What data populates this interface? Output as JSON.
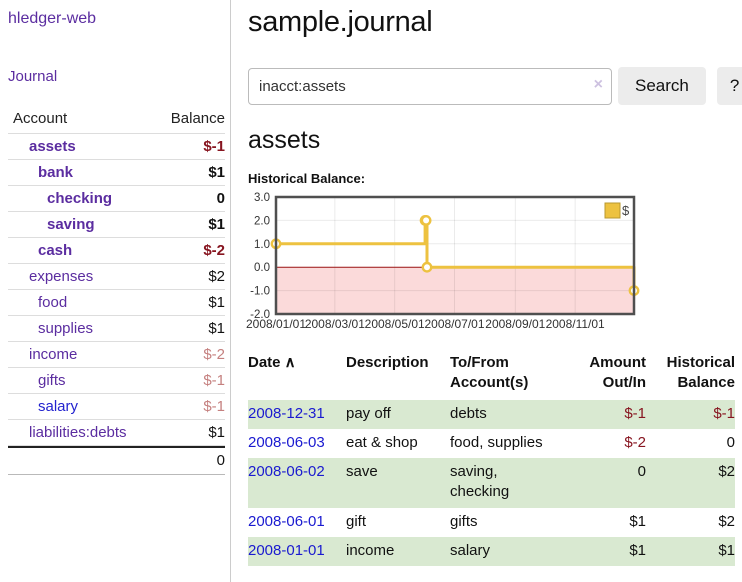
{
  "sidebar": {
    "app_title": "hledger-web",
    "journal_link": "Journal",
    "table": {
      "headers": {
        "account": "Account",
        "balance": "Balance"
      },
      "rows": [
        {
          "name": "assets",
          "balance": "$-1",
          "level": 1,
          "bold": true,
          "balance_style": "negative",
          "link_style": "purple"
        },
        {
          "name": "bank",
          "balance": "$1",
          "level": 2,
          "bold": true,
          "balance_style": "normal",
          "link_style": "purple"
        },
        {
          "name": "checking",
          "balance": "0",
          "level": 3,
          "bold": true,
          "balance_style": "normal",
          "link_style": "purple"
        },
        {
          "name": "saving",
          "balance": "$1",
          "level": 3,
          "bold": true,
          "balance_style": "normal",
          "link_style": "purple"
        },
        {
          "name": "cash",
          "balance": "$-2",
          "level": 2,
          "bold": true,
          "balance_style": "negative",
          "link_style": "purple"
        },
        {
          "name": "expenses",
          "balance": "$2",
          "level": 1,
          "bold": false,
          "balance_style": "normal",
          "link_style": "purple"
        },
        {
          "name": "food",
          "balance": "$1",
          "level": 2,
          "bold": false,
          "balance_style": "normal",
          "link_style": "purple"
        },
        {
          "name": "supplies",
          "balance": "$1",
          "level": 2,
          "bold": false,
          "balance_style": "normal",
          "link_style": "purple"
        },
        {
          "name": "income",
          "balance": "$-2",
          "level": 1,
          "bold": false,
          "balance_style": "negative-dim",
          "link_style": "purple"
        },
        {
          "name": "gifts",
          "balance": "$-1",
          "level": 2,
          "bold": false,
          "balance_style": "negative-dim",
          "link_style": "purple"
        },
        {
          "name": "salary",
          "balance": "$-1",
          "level": 2,
          "bold": false,
          "balance_style": "negative-dim",
          "link_style": "blue"
        },
        {
          "name": "liabilities:debts",
          "balance": "$1",
          "level": 1,
          "bold": false,
          "balance_style": "normal",
          "link_style": "purple"
        }
      ],
      "total": "0"
    }
  },
  "main": {
    "page_title": "sample.journal",
    "search": {
      "value": "inacct:assets",
      "clear_icon": "×",
      "search_button": "Search",
      "help_button": "?"
    },
    "account_heading": "assets",
    "section_label": "Historical Balance:"
  },
  "chart_data": {
    "type": "line",
    "style": "step-after",
    "title": "Historical Balance",
    "legend": [
      {
        "label": "$",
        "color": "#edc240"
      }
    ],
    "legend_position": "top-right",
    "x_range": [
      "2008-01-01",
      "2008-12-31"
    ],
    "x_ticks": [
      "2008/01/01",
      "2008/03/01",
      "2008/05/01",
      "2008/07/01",
      "2008/09/01",
      "2008/11/01"
    ],
    "y_range": [
      -2.0,
      3.0
    ],
    "y_ticks": [
      3.0,
      2.0,
      1.0,
      0.0,
      -1.0,
      -2.0
    ],
    "grid": true,
    "colors": {
      "line": "#edc240",
      "marker_fill": "#ffffff",
      "negative_region": "#fbdada",
      "zero_line": "#9a1313",
      "border": "#4f4f4f",
      "gridline": "rgba(0,0,0,0.08)",
      "tick_text": "#333333",
      "legend_box_border": "#b9982f"
    },
    "series": [
      {
        "name": "$",
        "points": [
          {
            "date": "2008-01-01",
            "value": 1
          },
          {
            "date": "2008-06-01",
            "value": 2
          },
          {
            "date": "2008-06-02",
            "value": 2
          },
          {
            "date": "2008-06-03",
            "value": 0
          },
          {
            "date": "2008-12-31",
            "value": -1
          }
        ]
      }
    ]
  },
  "register": {
    "headers": [
      {
        "label": "Date",
        "sort": "∧",
        "align": "left"
      },
      {
        "label": "Description",
        "align": "left"
      },
      {
        "label": "To/From Account(s)",
        "align": "left"
      },
      {
        "label": "Amount Out/In",
        "align": "right"
      },
      {
        "label": "Historical Balance",
        "align": "right"
      }
    ],
    "rows": [
      {
        "date": "2008-12-31",
        "description": "pay off",
        "accounts": "debts",
        "amount": "$-1",
        "amount_negative": true,
        "balance": "$-1",
        "balance_negative": true
      },
      {
        "date": "2008-06-03",
        "description": "eat & shop",
        "accounts": "food, supplies",
        "amount": "$-2",
        "amount_negative": true,
        "balance": "0",
        "balance_negative": false
      },
      {
        "date": "2008-06-02",
        "description": "save",
        "accounts": "saving, checking",
        "amount": "0",
        "amount_negative": false,
        "balance": "$2",
        "balance_negative": false
      },
      {
        "date": "2008-06-01",
        "description": "gift",
        "accounts": "gifts",
        "amount": "$1",
        "amount_negative": false,
        "balance": "$2",
        "balance_negative": false
      },
      {
        "date": "2008-01-01",
        "description": "income",
        "accounts": "salary",
        "amount": "$1",
        "amount_negative": false,
        "balance": "$1",
        "balance_negative": false
      }
    ]
  }
}
